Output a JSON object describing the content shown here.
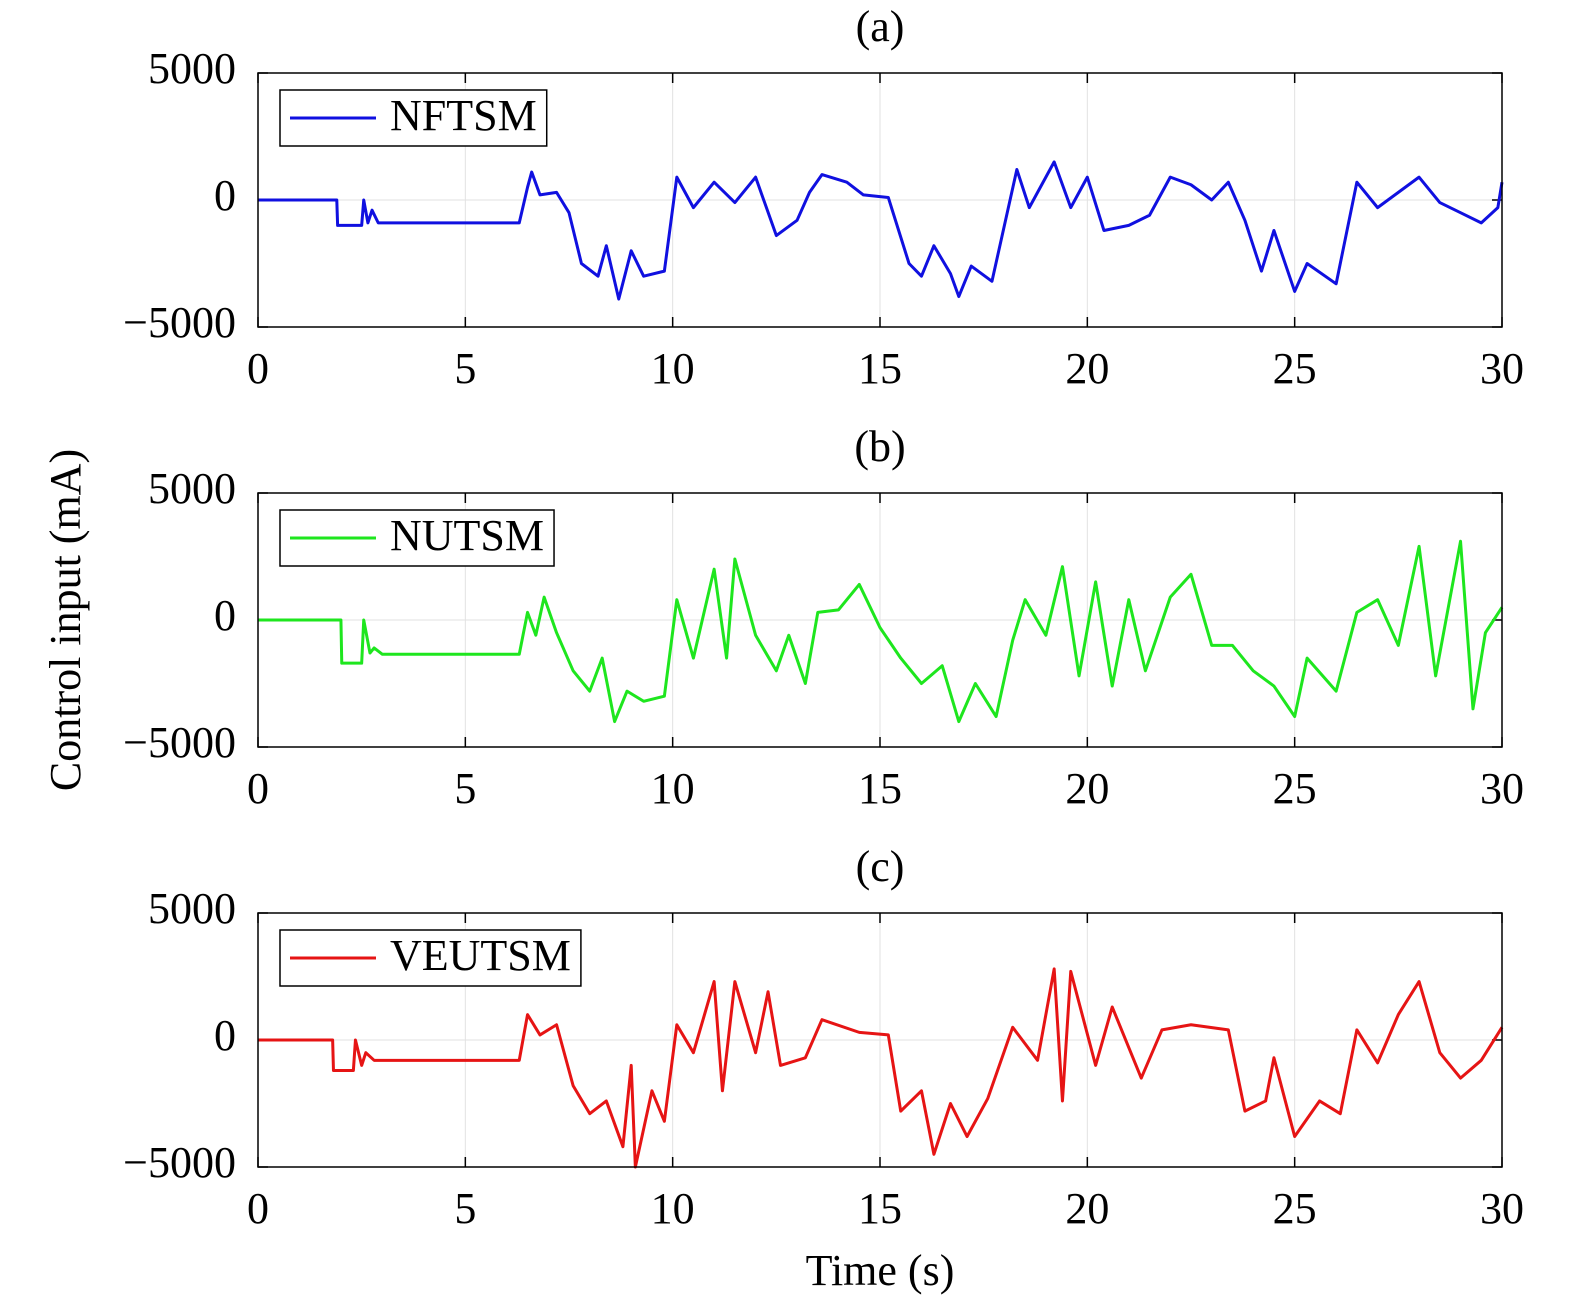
{
  "chart_data": [
    {
      "type": "line",
      "title": "(a)",
      "x": [
        0,
        1.9,
        1.92,
        2.5,
        2.55,
        2.65,
        2.75,
        2.9,
        6.3,
        6.5,
        6.6,
        6.8,
        7.2,
        7.5,
        7.8,
        8.2,
        8.4,
        8.7,
        9.0,
        9.3,
        9.8,
        10.1,
        10.5,
        11,
        11.5,
        12,
        12.5,
        13,
        13.3,
        13.6,
        14.2,
        14.6,
        15.2,
        15.7,
        16.0,
        16.3,
        16.7,
        16.9,
        17.2,
        17.7,
        18.3,
        18.6,
        19.2,
        19.6,
        20,
        20.4,
        21,
        21.5,
        22,
        22.5,
        23,
        23.4,
        23.8,
        24.2,
        24.5,
        25,
        25.3,
        26,
        26.5,
        27,
        27.5,
        28,
        28.5,
        29,
        29.5,
        29.9,
        30
      ],
      "series": [
        {
          "name": "NFTSM",
          "color": "#1010e0",
          "values": [
            0,
            0,
            -1000,
            -1000,
            0,
            -900,
            -400,
            -900,
            -900,
            500,
            1100,
            200,
            300,
            -500,
            -2500,
            -3000,
            -1800,
            -3900,
            -2000,
            -3000,
            -2800,
            900,
            -300,
            700,
            -100,
            900,
            -1400,
            -800,
            300,
            1000,
            700,
            200,
            100,
            -2500,
            -3000,
            -1800,
            -2900,
            -3800,
            -2600,
            -3200,
            1200,
            -300,
            1500,
            -300,
            900,
            -1200,
            -1000,
            -600,
            900,
            600,
            0,
            700,
            -800,
            -2800,
            -1200,
            -3600,
            -2500,
            -3300,
            700,
            -300,
            300,
            900,
            -100,
            -500,
            -900,
            -300,
            700
          ]
        }
      ],
      "xlim": [
        0,
        30
      ],
      "xticks": [
        0,
        5,
        10,
        15,
        20,
        25,
        30
      ],
      "ylim": [
        -5000,
        5000
      ],
      "yticks": [
        {
          "value": -5000,
          "label": "−5000"
        },
        0,
        5000
      ],
      "grid": true,
      "legend": "upper left"
    },
    {
      "type": "line",
      "title": "(b)",
      "ylabel": "Control input (mA)",
      "x": [
        0,
        2.0,
        2.02,
        2.5,
        2.55,
        2.7,
        2.8,
        3,
        6.3,
        6.5,
        6.7,
        6.9,
        7.2,
        7.6,
        8.0,
        8.3,
        8.6,
        8.9,
        9.3,
        9.8,
        10.1,
        10.5,
        11,
        11.3,
        11.5,
        12,
        12.5,
        12.8,
        13.2,
        13.5,
        14,
        14.5,
        15,
        15.5,
        16,
        16.5,
        16.9,
        17.3,
        17.8,
        18.2,
        18.5,
        19,
        19.4,
        19.8,
        20.2,
        20.6,
        21,
        21.4,
        22,
        22.5,
        23,
        23.5,
        24,
        24.5,
        25,
        25.3,
        26,
        26.5,
        27,
        27.5,
        28,
        28.4,
        29,
        29.3,
        29.6,
        30
      ],
      "series": [
        {
          "name": "NUTSM",
          "color": "#1ee61e",
          "values": [
            0,
            0,
            -1700,
            -1700,
            0,
            -1300,
            -1100,
            -1350,
            -1350,
            300,
            -600,
            900,
            -500,
            -2000,
            -2800,
            -1500,
            -4000,
            -2800,
            -3200,
            -3000,
            800,
            -1500,
            2000,
            -1500,
            2400,
            -600,
            -2000,
            -600,
            -2500,
            300,
            400,
            1400,
            -300,
            -1500,
            -2500,
            -1800,
            -4000,
            -2500,
            -3800,
            -800,
            800,
            -600,
            2100,
            -2200,
            1500,
            -2600,
            800,
            -2000,
            900,
            1800,
            -1000,
            -1000,
            -2000,
            -2600,
            -3800,
            -1500,
            -2800,
            300,
            800,
            -1000,
            2900,
            -2200,
            3100,
            -3500,
            -500,
            500
          ]
        }
      ],
      "xlim": [
        0,
        30
      ],
      "xticks": [
        0,
        5,
        10,
        15,
        20,
        25,
        30
      ],
      "ylim": [
        -5000,
        5000
      ],
      "yticks": [
        {
          "value": -5000,
          "label": "−5000"
        },
        0,
        5000
      ],
      "grid": true,
      "legend": "upper left"
    },
    {
      "type": "line",
      "title": "(c)",
      "xlabel": "Time (s)",
      "x": [
        0,
        1.8,
        1.82,
        2.3,
        2.35,
        2.5,
        2.6,
        2.8,
        6.3,
        6.5,
        6.8,
        7.2,
        7.6,
        8,
        8.4,
        8.8,
        9,
        9.1,
        9.5,
        9.8,
        10.1,
        10.5,
        11,
        11.2,
        11.5,
        12,
        12.3,
        12.6,
        13.2,
        13.6,
        14.5,
        15.2,
        15.5,
        16,
        16.3,
        16.7,
        17.1,
        17.6,
        18.2,
        18.8,
        19.2,
        19.4,
        19.6,
        20.2,
        20.6,
        21.3,
        21.8,
        22.5,
        23.4,
        23.8,
        24.3,
        24.5,
        25,
        25.6,
        26.1,
        26.5,
        27,
        27.5,
        28,
        28.5,
        29,
        29.5,
        30
      ],
      "series": [
        {
          "name": "VEUTSM",
          "color": "#e61414",
          "values": [
            0,
            0,
            -1200,
            -1200,
            0,
            -1000,
            -500,
            -800,
            -800,
            1000,
            200,
            600,
            -1800,
            -2900,
            -2400,
            -4200,
            -1000,
            -5000,
            -2000,
            -3200,
            600,
            -500,
            2300,
            -2000,
            2300,
            -500,
            1900,
            -1000,
            -700,
            800,
            300,
            200,
            -2800,
            -2000,
            -4500,
            -2500,
            -3800,
            -2300,
            500,
            -800,
            2800,
            -2400,
            2700,
            -1000,
            1300,
            -1500,
            400,
            600,
            400,
            -2800,
            -2400,
            -700,
            -3800,
            -2400,
            -2900,
            400,
            -900,
            1000,
            2300,
            -500,
            -1500,
            -800,
            500
          ]
        }
      ],
      "xlim": [
        0,
        30
      ],
      "xticks": [
        0,
        5,
        10,
        15,
        20,
        25,
        30
      ],
      "ylim": [
        -5000,
        5000
      ],
      "yticks": [
        {
          "value": -5000,
          "label": "−5000"
        },
        0,
        5000
      ],
      "grid": true,
      "legend": "upper left"
    }
  ]
}
